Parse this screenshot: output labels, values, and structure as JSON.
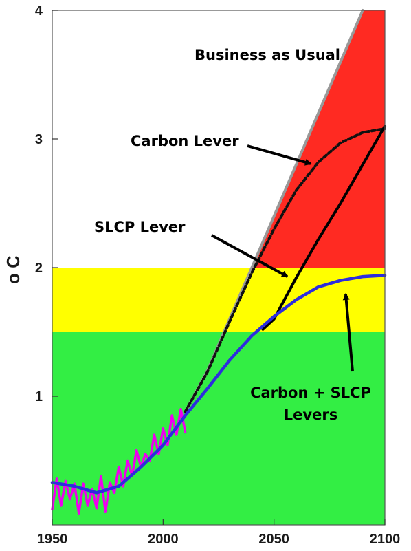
{
  "chart_data": {
    "type": "line",
    "title": "",
    "xlabel": "",
    "ylabel": "o C",
    "xlim": [
      1950,
      2100
    ],
    "ylim": [
      0,
      4
    ],
    "x_ticks": [
      1950,
      2000,
      2050,
      2100
    ],
    "y_ticks": [
      1,
      2,
      3,
      4
    ],
    "grid": false,
    "bands": [
      {
        "name": "green",
        "y_from": 0,
        "y_to": 1.5,
        "color": "#33ee44"
      },
      {
        "name": "yellow",
        "y_from": 1.5,
        "y_to": 2.0,
        "color": "#ffff00"
      },
      {
        "name": "red",
        "y_from": 2.0,
        "y_to": 4.0,
        "color": "#ff2a22",
        "bounded_by_series": "business"
      }
    ],
    "series": [
      {
        "id": "business",
        "name": "Business as Usual",
        "color": "#999999",
        "style": "solid",
        "x": [
          2010,
          2020,
          2030,
          2040,
          2050,
          2060,
          2070,
          2080,
          2090,
          2100
        ],
        "y": [
          0.88,
          1.2,
          1.6,
          2.0,
          2.4,
          2.8,
          3.2,
          3.6,
          4.0,
          4.4
        ]
      },
      {
        "id": "carbon",
        "name": "Carbon Lever",
        "color": "#111111",
        "style": "dashed",
        "x": [
          2010,
          2020,
          2030,
          2040,
          2050,
          2060,
          2070,
          2080,
          2090,
          2100
        ],
        "y": [
          0.88,
          1.19,
          1.58,
          1.96,
          2.3,
          2.6,
          2.82,
          2.97,
          3.05,
          3.08
        ]
      },
      {
        "id": "slcp",
        "name": "SLCP Lever",
        "color": "#000000",
        "style": "solid",
        "x": [
          2045,
          2050,
          2060,
          2070,
          2080,
          2090,
          2100
        ],
        "y": [
          1.52,
          1.6,
          1.92,
          2.22,
          2.5,
          2.8,
          3.1
        ]
      },
      {
        "id": "combined",
        "name": "Carbon + SLCP Levers",
        "color": "#2d2ddd",
        "style": "solid",
        "x": [
          1950,
          1960,
          1970,
          1980,
          1990,
          2000,
          2010,
          2020,
          2030,
          2040,
          2050,
          2060,
          2070,
          2080,
          2090,
          2100
        ],
        "y": [
          0.33,
          0.3,
          0.25,
          0.3,
          0.45,
          0.62,
          0.85,
          1.06,
          1.28,
          1.47,
          1.62,
          1.75,
          1.85,
          1.9,
          1.93,
          1.94
        ]
      },
      {
        "id": "observed",
        "name": "",
        "color": "#ee00ee",
        "style": "solid",
        "x": [
          1950,
          1952,
          1954,
          1956,
          1958,
          1960,
          1962,
          1964,
          1966,
          1968,
          1970,
          1972,
          1974,
          1976,
          1978,
          1980,
          1982,
          1984,
          1986,
          1988,
          1990,
          1992,
          1994,
          1996,
          1998,
          2000,
          2002,
          2004,
          2006,
          2008,
          2010
        ],
        "y": [
          0.12,
          0.36,
          0.15,
          0.34,
          0.2,
          0.32,
          0.09,
          0.32,
          0.15,
          0.28,
          0.13,
          0.38,
          0.1,
          0.33,
          0.25,
          0.45,
          0.3,
          0.5,
          0.38,
          0.58,
          0.45,
          0.55,
          0.5,
          0.7,
          0.55,
          0.75,
          0.62,
          0.85,
          0.7,
          0.9,
          0.72
        ]
      }
    ],
    "annotations": [
      {
        "id": "business",
        "text": "Business as Usual"
      },
      {
        "id": "carbon",
        "text": "Carbon Lever"
      },
      {
        "id": "slcp",
        "text": "SLCP Lever"
      },
      {
        "id": "combined_1",
        "text": "Carbon + SLCP"
      },
      {
        "id": "combined_2",
        "text": "Levers"
      }
    ]
  }
}
